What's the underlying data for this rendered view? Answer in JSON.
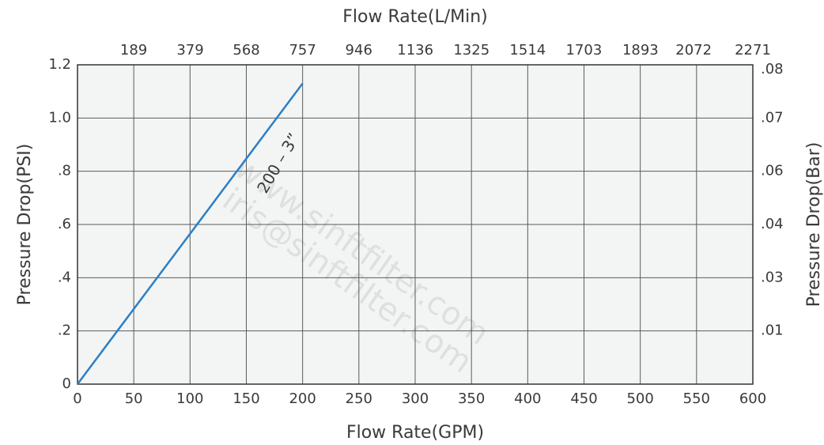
{
  "chart_data": {
    "type": "line",
    "x_label": "Flow Rate(GPM)",
    "x2_label": "Flow Rate(L/Min)",
    "y_label": "Pressure Drop(PSI)",
    "y2_label": "Pressure Drop(Bar)",
    "xlim": [
      0,
      600
    ],
    "xticks": [
      0,
      50,
      100,
      150,
      200,
      250,
      300,
      350,
      400,
      450,
      500,
      550,
      600
    ],
    "x2lim": [
      0,
      2271
    ],
    "x2ticks": [
      189,
      379,
      568,
      757,
      946,
      1136,
      1325,
      1514,
      1703,
      1893,
      2072,
      2271
    ],
    "ylim": [
      0,
      1.2
    ],
    "yticks": [
      0,
      {
        "value": 0.2,
        "label": ".2"
      },
      {
        "value": 0.4,
        "label": ".4"
      },
      {
        "value": 0.6,
        "label": ".6"
      },
      {
        "value": 0.8,
        "label": ".8"
      },
      {
        "value": 1.0,
        "label": "1.0"
      },
      {
        "value": 1.2,
        "label": "1.2"
      }
    ],
    "y2tick_labels": [
      ".01",
      ".03",
      ".04",
      ".06",
      ".07",
      ".08"
    ],
    "grid": true,
    "series": [
      {
        "name": "200 – 3”",
        "color": "#2b7fc3",
        "x": [
          0,
          200
        ],
        "values": [
          0,
          1.13
        ]
      }
    ],
    "watermarks": [
      "www.sinftfilter.com",
      "iris@sinftfilter.com"
    ]
  }
}
